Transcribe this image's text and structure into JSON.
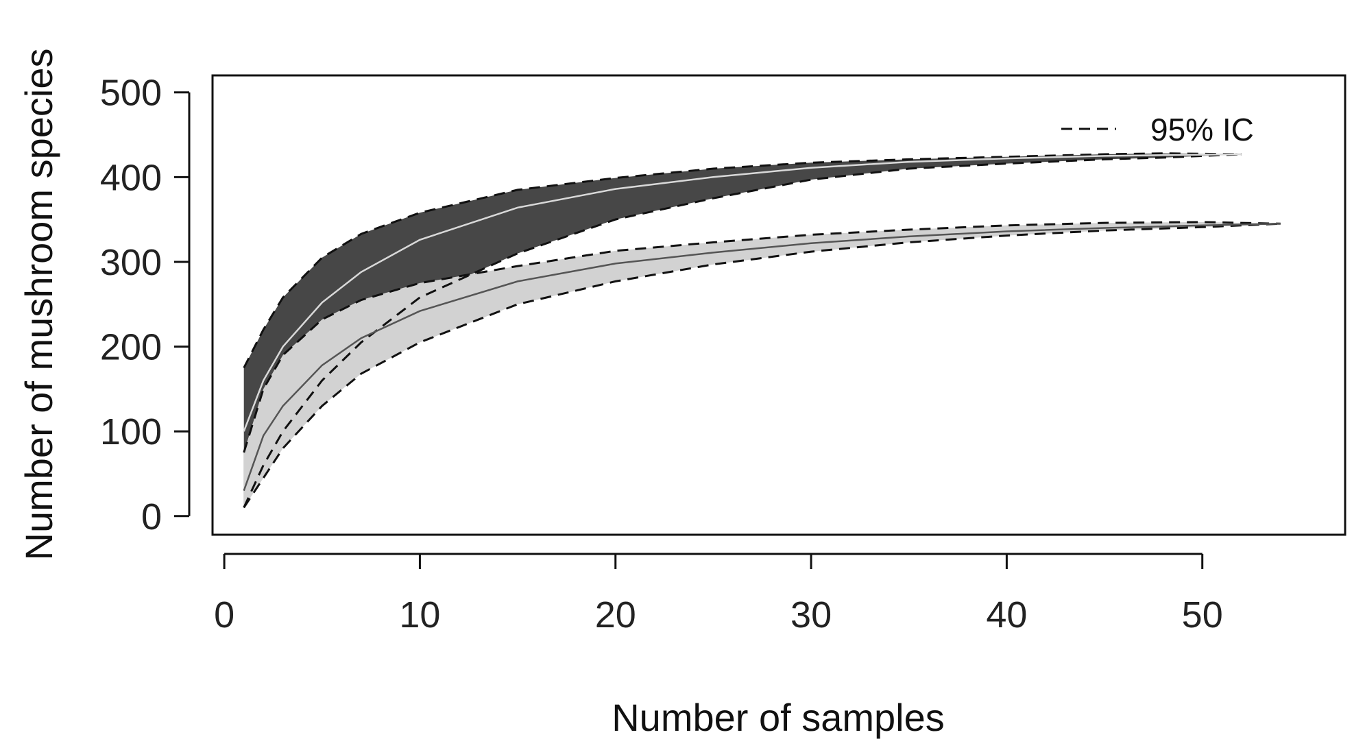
{
  "chart_data": {
    "type": "area",
    "title": "",
    "xlabel": "Number of samples",
    "ylabel": "Number of mushroom species",
    "xlim": [
      -0.6,
      57.3
    ],
    "ylim": [
      -22,
      520
    ],
    "xticks": [
      0,
      10,
      20,
      30,
      40,
      50
    ],
    "yticks": [
      0,
      100,
      200,
      300,
      400,
      500
    ],
    "grid": false,
    "legend": {
      "position": "top-right",
      "entries": [
        {
          "label": "95% IC",
          "style": "dashed"
        }
      ]
    },
    "series": [
      {
        "fill": "#474747",
        "mean_color": "#d9d9d9",
        "x": [
          1,
          2,
          3,
          5,
          7,
          10,
          15,
          20,
          25,
          30,
          35,
          40,
          45,
          48,
          52
        ],
        "mean": [
          100,
          160,
          200,
          252,
          288,
          326,
          364,
          386,
          400,
          411,
          418,
          422,
          425,
          426,
          427
        ],
        "lower": [
          10,
          60,
          100,
          160,
          205,
          258,
          310,
          350,
          375,
          397,
          410,
          416,
          421,
          423,
          427
        ],
        "upper": [
          175,
          220,
          258,
          305,
          333,
          358,
          385,
          399,
          410,
          417,
          421,
          424,
          427,
          428,
          427
        ]
      },
      {
        "fill": "#d2d2d2",
        "mean_color": "#555555",
        "x": [
          1,
          2,
          3,
          5,
          7,
          10,
          15,
          20,
          25,
          30,
          35,
          40,
          45,
          50,
          54
        ],
        "mean": [
          30,
          95,
          130,
          178,
          210,
          242,
          277,
          298,
          311,
          322,
          330,
          336,
          340,
          343,
          345
        ],
        "lower": [
          10,
          45,
          80,
          130,
          168,
          205,
          250,
          277,
          297,
          312,
          323,
          331,
          337,
          341,
          345
        ],
        "upper": [
          75,
          150,
          190,
          232,
          255,
          275,
          295,
          313,
          323,
          332,
          338,
          343,
          346,
          347,
          345
        ]
      }
    ]
  }
}
